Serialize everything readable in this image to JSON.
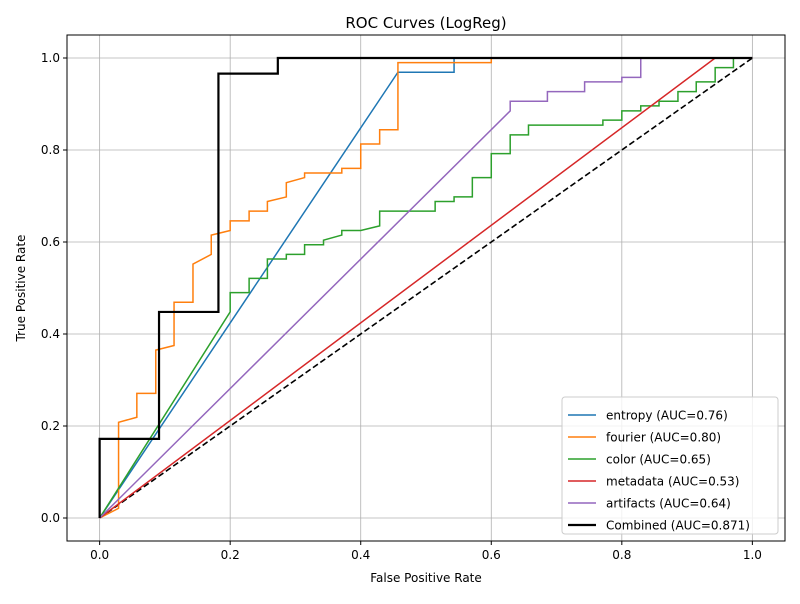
{
  "chart_data": {
    "type": "line",
    "title": "ROC Curves (LogReg)",
    "xlabel": "False Positive Rate",
    "ylabel": "True Positive Rate",
    "xlim": [
      -0.05,
      1.05
    ],
    "ylim": [
      -0.05,
      1.05
    ],
    "xticks": [
      0.0,
      0.2,
      0.4,
      0.6,
      0.8,
      1.0
    ],
    "yticks": [
      0.0,
      0.2,
      0.4,
      0.6,
      0.8,
      1.0
    ],
    "xtick_labels": [
      "0.0",
      "0.2",
      "0.4",
      "0.6",
      "0.8",
      "1.0"
    ],
    "ytick_labels": [
      "0.0",
      "0.2",
      "0.4",
      "0.6",
      "0.8",
      "1.0"
    ],
    "grid": true,
    "legend_position": "lower-right",
    "diagonal": {
      "x": [
        0,
        1
      ],
      "y": [
        0,
        1
      ],
      "color": "#000000",
      "style": "dashed"
    },
    "series": [
      {
        "name": "entropy (AUC=0.76)",
        "color": "#1f77b4",
        "x": [
          0,
          0.457,
          0.543,
          0.543,
          1.0
        ],
        "y": [
          0,
          0.969,
          0.969,
          1.0,
          1.0
        ]
      },
      {
        "name": "fourier (AUC=0.80)",
        "color": "#ff7f0e",
        "x": [
          0,
          0.029,
          0.029,
          0.057,
          0.057,
          0.086,
          0.086,
          0.114,
          0.114,
          0.143,
          0.143,
          0.171,
          0.171,
          0.2,
          0.2,
          0.229,
          0.229,
          0.257,
          0.257,
          0.286,
          0.286,
          0.314,
          0.314,
          0.371,
          0.371,
          0.4,
          0.4,
          0.429,
          0.429,
          0.457,
          0.457,
          0.6,
          0.6,
          1.0
        ],
        "y": [
          0,
          0.021,
          0.208,
          0.219,
          0.271,
          0.271,
          0.365,
          0.375,
          0.469,
          0.469,
          0.552,
          0.573,
          0.615,
          0.625,
          0.646,
          0.646,
          0.667,
          0.667,
          0.688,
          0.698,
          0.729,
          0.74,
          0.75,
          0.75,
          0.76,
          0.76,
          0.813,
          0.813,
          0.844,
          0.844,
          0.99,
          0.99,
          1.0,
          1.0
        ]
      },
      {
        "name": "color (AUC=0.65)",
        "color": "#2ca02c",
        "x": [
          0,
          0.2,
          0.2,
          0.229,
          0.229,
          0.257,
          0.257,
          0.286,
          0.286,
          0.314,
          0.314,
          0.343,
          0.343,
          0.371,
          0.371,
          0.4,
          0.4,
          0.429,
          0.429,
          0.514,
          0.514,
          0.543,
          0.543,
          0.571,
          0.571,
          0.6,
          0.6,
          0.629,
          0.629,
          0.657,
          0.657,
          0.771,
          0.771,
          0.8,
          0.8,
          0.829,
          0.829,
          0.857,
          0.857,
          0.886,
          0.886,
          0.914,
          0.914,
          0.943,
          0.943,
          0.971,
          0.971,
          1.0
        ],
        "y": [
          0,
          0.448,
          0.49,
          0.49,
          0.521,
          0.521,
          0.563,
          0.563,
          0.573,
          0.573,
          0.594,
          0.594,
          0.604,
          0.615,
          0.625,
          0.625,
          0.625,
          0.635,
          0.667,
          0.667,
          0.688,
          0.688,
          0.698,
          0.698,
          0.74,
          0.74,
          0.792,
          0.792,
          0.833,
          0.833,
          0.854,
          0.854,
          0.865,
          0.865,
          0.885,
          0.885,
          0.896,
          0.896,
          0.906,
          0.906,
          0.927,
          0.927,
          0.948,
          0.948,
          0.979,
          0.979,
          1.0,
          1.0
        ]
      },
      {
        "name": "metadata (AUC=0.53)",
        "color": "#d62728",
        "x": [
          0,
          0.943,
          1.0
        ],
        "y": [
          0,
          1.0,
          1.0
        ]
      },
      {
        "name": "artifacts (AUC=0.64)",
        "color": "#9467bd",
        "x": [
          0,
          0.629,
          0.629,
          0.686,
          0.686,
          0.743,
          0.743,
          0.8,
          0.8,
          0.829,
          0.829,
          1.0
        ],
        "y": [
          0,
          0.885,
          0.906,
          0.906,
          0.927,
          0.927,
          0.948,
          0.948,
          0.958,
          0.958,
          1.0,
          1.0
        ]
      },
      {
        "name": "Combined (AUC=0.871)",
        "color": "#000000",
        "bold": true,
        "x": [
          0,
          0,
          0.091,
          0.091,
          0.182,
          0.182,
          0.273,
          0.273,
          1.0
        ],
        "y": [
          0,
          0.172,
          0.172,
          0.448,
          0.448,
          0.966,
          0.966,
          1.0,
          1.0
        ]
      }
    ]
  }
}
